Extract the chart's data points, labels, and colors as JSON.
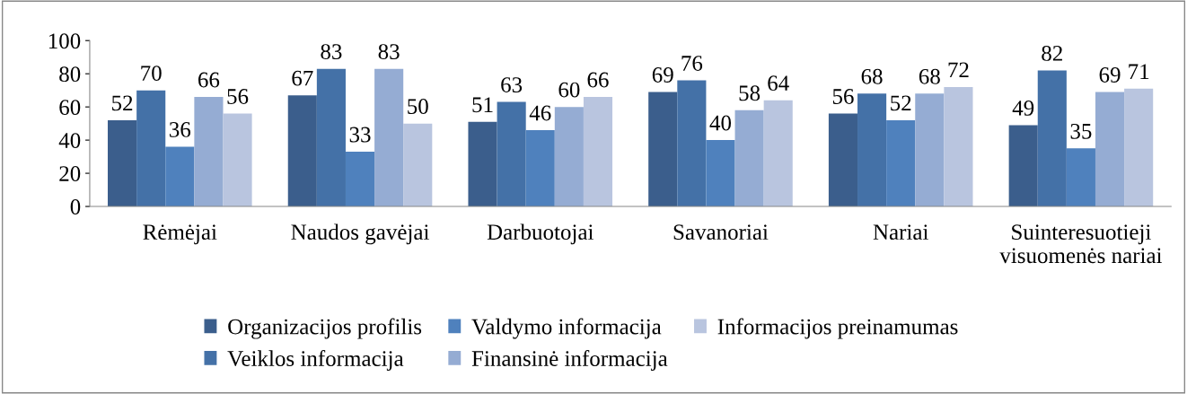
{
  "chart_data": {
    "type": "bar",
    "categories": [
      "Rėmėjai",
      "Naudos gavėjai",
      "Darbuotojai",
      "Savanoriai",
      "Nariai",
      "Suinteresuotieji\nvisuomenės nariai"
    ],
    "series": [
      {
        "name": "Organizacijos profilis",
        "color": "#3b5e8c",
        "values": [
          52,
          67,
          51,
          69,
          56,
          49
        ]
      },
      {
        "name": "Veiklos informacija",
        "color": "#4471a7",
        "values": [
          70,
          83,
          63,
          76,
          68,
          82
        ]
      },
      {
        "name": "Valdymo informacija",
        "color": "#4f81bd",
        "values": [
          36,
          33,
          46,
          40,
          52,
          35
        ]
      },
      {
        "name": "Finansinė informacija",
        "color": "#95acd3",
        "values": [
          66,
          83,
          60,
          58,
          68,
          69
        ]
      },
      {
        "name": "Informacijos preinamumas",
        "color": "#b9c5df",
        "values": [
          56,
          50,
          66,
          64,
          72,
          71
        ]
      }
    ],
    "ylim": [
      0,
      100
    ],
    "yticks": [
      0,
      20,
      40,
      60,
      80,
      100
    ],
    "data_labels": true,
    "grid": false,
    "legend": "bottom"
  }
}
